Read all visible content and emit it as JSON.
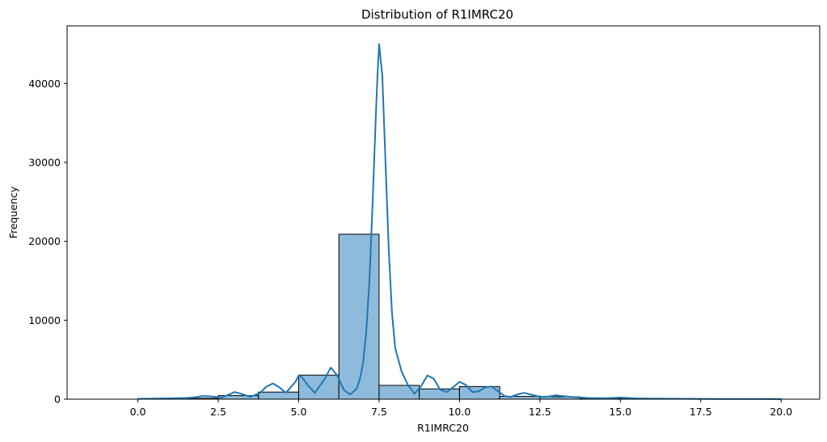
{
  "chart_data": {
    "type": "bar",
    "title": "Distribution of R1IMRC20",
    "xlabel": "R1IMRC20",
    "ylabel": "Frequency",
    "xlim": [
      -2.2,
      21.2
    ],
    "ylim": [
      0,
      47300
    ],
    "x_ticks": [
      0.0,
      2.5,
      5.0,
      7.5,
      10.0,
      12.5,
      15.0,
      17.5,
      20.0
    ],
    "x_tick_labels": [
      "0.0",
      "2.5",
      "5.0",
      "7.5",
      "10.0",
      "12.5",
      "15.0",
      "17.5",
      "20.0"
    ],
    "y_ticks": [
      0,
      10000,
      20000,
      30000,
      40000
    ],
    "y_tick_labels": [
      "0",
      "10000",
      "20000",
      "30000",
      "40000"
    ],
    "bins": [
      {
        "x0": 0.0,
        "x1": 1.25,
        "count": 20
      },
      {
        "x0": 1.25,
        "x1": 2.5,
        "count": 120
      },
      {
        "x0": 2.5,
        "x1": 3.75,
        "count": 450
      },
      {
        "x0": 3.75,
        "x1": 5.0,
        "count": 900
      },
      {
        "x0": 5.0,
        "x1": 6.25,
        "count": 3050
      },
      {
        "x0": 6.25,
        "x1": 7.5,
        "count": 20900
      },
      {
        "x0": 7.5,
        "x1": 8.75,
        "count": 1750
      },
      {
        "x0": 8.75,
        "x1": 10.0,
        "count": 1300
      },
      {
        "x0": 10.0,
        "x1": 11.25,
        "count": 1600
      },
      {
        "x0": 11.25,
        "x1": 12.5,
        "count": 350
      },
      {
        "x0": 12.5,
        "x1": 13.75,
        "count": 300
      },
      {
        "x0": 13.75,
        "x1": 15.0,
        "count": 100
      },
      {
        "x0": 15.0,
        "x1": 16.25,
        "count": 40
      },
      {
        "x0": 16.25,
        "x1": 17.5,
        "count": 20
      },
      {
        "x0": 17.5,
        "x1": 18.75,
        "count": 10
      },
      {
        "x0": 18.75,
        "x1": 20.0,
        "count": 5
      }
    ],
    "kde": {
      "x": [
        0.0,
        0.5,
        1.0,
        1.5,
        1.8,
        2.0,
        2.3,
        2.6,
        2.9,
        3.0,
        3.2,
        3.5,
        3.8,
        4.0,
        4.2,
        4.4,
        4.6,
        4.9,
        5.0,
        5.1,
        5.3,
        5.5,
        5.8,
        6.0,
        6.2,
        6.4,
        6.6,
        6.8,
        6.9,
        7.0,
        7.1,
        7.2,
        7.3,
        7.4,
        7.45,
        7.5,
        7.6,
        7.7,
        7.8,
        7.9,
        8.0,
        8.2,
        8.4,
        8.6,
        8.8,
        9.0,
        9.2,
        9.4,
        9.6,
        9.8,
        10.0,
        10.2,
        10.4,
        10.6,
        10.8,
        11.0,
        11.2,
        11.4,
        11.6,
        11.8,
        12.0,
        12.2,
        12.4,
        12.6,
        12.8,
        13.0,
        13.2,
        13.6,
        14.0,
        14.5,
        15.0,
        15.5,
        16.0,
        17.0,
        18.0,
        19.0,
        20.0
      ],
      "y": [
        50,
        80,
        100,
        150,
        250,
        400,
        350,
        200,
        700,
        900,
        700,
        300,
        800,
        1600,
        2000,
        1500,
        800,
        2200,
        3000,
        2800,
        1700,
        800,
        2500,
        4000,
        3000,
        1200,
        600,
        1300,
        2500,
        4500,
        8500,
        15000,
        25000,
        36000,
        41000,
        45000,
        41000,
        30000,
        19000,
        11000,
        6500,
        3500,
        1800,
        700,
        1600,
        3000,
        2600,
        1200,
        900,
        1500,
        2200,
        1800,
        900,
        1000,
        1500,
        1600,
        1000,
        400,
        300,
        600,
        800,
        600,
        400,
        300,
        350,
        500,
        400,
        250,
        150,
        120,
        200,
        100,
        80,
        50,
        30,
        20,
        10
      ]
    },
    "bar_color": "#8ebbdb",
    "bar_edge_color": "#000000",
    "line_color": "#1f77b4",
    "grid": false,
    "legend": "none"
  }
}
